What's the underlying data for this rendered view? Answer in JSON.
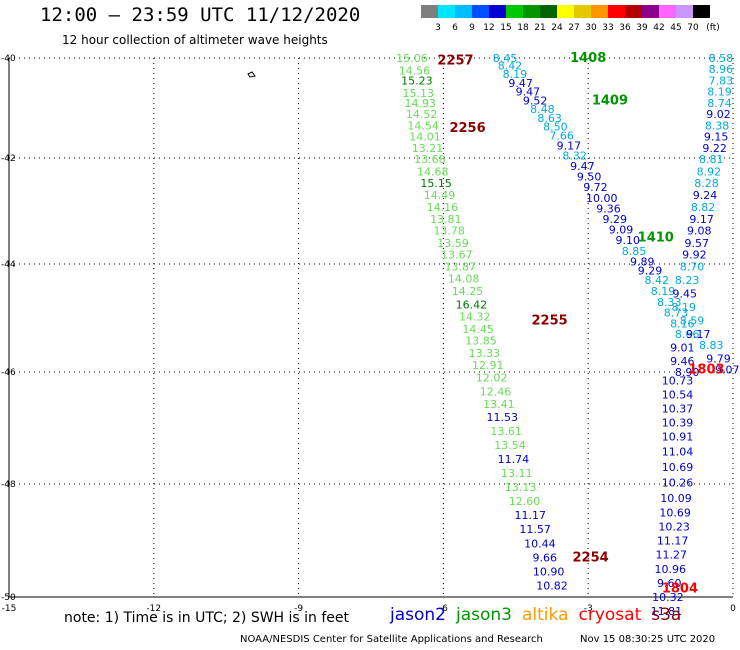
{
  "header": {
    "title": "12:00 — 23:59 UTC 11/12/2020",
    "subtitle": "12 hour collection of altimeter wave heights"
  },
  "colorbar": {
    "unit": "(ft)",
    "levels": [
      "3",
      "6",
      "9",
      "12",
      "15",
      "18",
      "21",
      "24",
      "27",
      "30",
      "33",
      "36",
      "39",
      "42",
      "45",
      "70"
    ],
    "colors": [
      "#7f7f7f",
      "#00e5ff",
      "#00bfff",
      "#0050ff",
      "#0000d0",
      "#00c800",
      "#009600",
      "#006400",
      "#ffff00",
      "#e6c800",
      "#ff9600",
      "#ff0000",
      "#b40000",
      "#8c008c",
      "#ff64ff",
      "#c896ff",
      "#000000"
    ]
  },
  "note": "note: 1) Time is in UTC; 2) SWH is in feet",
  "legend": [
    {
      "label": "jason2",
      "color": "#0000cc"
    },
    {
      "label": "jason3",
      "color": "#009600"
    },
    {
      "label": "altika",
      "color": "#ff9900"
    },
    {
      "label": "cryosat",
      "color": "#ff0000"
    },
    {
      "label": "s3a",
      "color": "#8b0000"
    }
  ],
  "footer": {
    "credit": "NOAA/NESDIS Center for Satellite Applications and Research",
    "timestamp": "Nov 15 08:30:25 UTC 2020"
  },
  "chart_data": {
    "type": "scatter",
    "title": "12:00 — 23:59 UTC 11/12/2020",
    "subtitle": "12 hour collection of altimeter wave heights",
    "xlim": [
      -15,
      0
    ],
    "ylim": [
      -50,
      -40
    ],
    "x_ticks": [
      "-15",
      "-12",
      "-9",
      "-6",
      "-3",
      "0"
    ],
    "y_ticks": [
      "-40",
      "-42",
      "-44",
      "-46",
      "-48",
      "-50"
    ],
    "grid": true,
    "colors": {
      "light_green": "#66dd55",
      "green": "#009600",
      "dark_green": "#007800",
      "cyan": "#00aadd",
      "blue": "#0000cc",
      "dark_red": "#8b0000",
      "red": "#ff0000"
    },
    "time_labels": [
      {
        "text": "2257",
        "x": -5.75,
        "y": -40.05,
        "color": "dark_red"
      },
      {
        "text": "2256",
        "x": -5.5,
        "y": -41.4,
        "color": "dark_red"
      },
      {
        "text": "2255",
        "x": -3.8,
        "y": -45.05,
        "color": "dark_red"
      },
      {
        "text": "2254",
        "x": -2.95,
        "y": -49.3,
        "color": "dark_red"
      },
      {
        "text": "1408",
        "x": -3.0,
        "y": -40.0,
        "color": "green"
      },
      {
        "text": "1409",
        "x": -2.55,
        "y": -40.85,
        "color": "green"
      },
      {
        "text": "1410",
        "x": -1.6,
        "y": -43.5,
        "color": "green"
      },
      {
        "text": "1803",
        "x": -0.55,
        "y": -45.95,
        "color": "red"
      },
      {
        "text": "1804",
        "x": -1.1,
        "y": -49.85,
        "color": "red"
      }
    ],
    "series": [
      {
        "name": "jason3 track 1",
        "color": "light_green",
        "points": [
          {
            "x": -6.65,
            "y": -40.0,
            "v": "15.06"
          },
          {
            "x": -6.6,
            "y": -40.25,
            "v": "14.56"
          },
          {
            "x": -6.55,
            "y": -40.45,
            "v": "15.23",
            "c": "dark_green"
          },
          {
            "x": -6.52,
            "y": -40.7,
            "v": "15.13"
          },
          {
            "x": -6.48,
            "y": -40.9,
            "v": "14.93"
          },
          {
            "x": -6.45,
            "y": -41.12,
            "v": "14.52"
          },
          {
            "x": -6.42,
            "y": -41.35,
            "v": "14.54"
          },
          {
            "x": -6.38,
            "y": -41.57,
            "v": "14.01"
          },
          {
            "x": -6.33,
            "y": -41.8,
            "v": "13.21"
          },
          {
            "x": -6.28,
            "y": -42.02,
            "v": "13.68"
          },
          {
            "x": -6.22,
            "y": -42.25,
            "v": "14.68"
          },
          {
            "x": -6.15,
            "y": -42.47,
            "v": "15.15",
            "c": "dark_green"
          },
          {
            "x": -6.08,
            "y": -42.7,
            "v": "14.49"
          },
          {
            "x": -6.02,
            "y": -42.92,
            "v": "14.16"
          },
          {
            "x": -5.95,
            "y": -43.15,
            "v": "13.81"
          },
          {
            "x": -5.88,
            "y": -43.37,
            "v": "13.78"
          },
          {
            "x": -5.8,
            "y": -43.6,
            "v": "13.59"
          },
          {
            "x": -5.72,
            "y": -43.82,
            "v": "13.67"
          },
          {
            "x": -5.65,
            "y": -44.05,
            "v": "13.87"
          },
          {
            "x": -5.58,
            "y": -44.27,
            "v": "14.08"
          },
          {
            "x": -5.5,
            "y": -44.5,
            "v": "14.25"
          },
          {
            "x": -5.42,
            "y": -44.75,
            "v": "16.42",
            "c": "dark_green"
          },
          {
            "x": -5.35,
            "y": -44.97,
            "v": "14.32"
          },
          {
            "x": -5.28,
            "y": -45.2,
            "v": "14.45"
          },
          {
            "x": -5.22,
            "y": -45.42,
            "v": "13.85"
          },
          {
            "x": -5.15,
            "y": -45.65,
            "v": "13.33"
          },
          {
            "x": -5.08,
            "y": -45.87,
            "v": "12.91"
          },
          {
            "x": -5.0,
            "y": -46.1,
            "v": "12.02"
          },
          {
            "x": -4.92,
            "y": -46.35,
            "v": "12.46"
          },
          {
            "x": -4.85,
            "y": -46.57,
            "v": "13.41"
          },
          {
            "x": -4.78,
            "y": -46.8,
            "v": "11.53",
            "c": "blue"
          },
          {
            "x": -4.7,
            "y": -47.05,
            "v": "13.61"
          },
          {
            "x": -4.62,
            "y": -47.3,
            "v": "13.54"
          },
          {
            "x": -4.55,
            "y": -47.55,
            "v": "11.74",
            "c": "blue"
          },
          {
            "x": -4.48,
            "y": -47.8,
            "v": "13.11"
          },
          {
            "x": -4.4,
            "y": -48.05,
            "v": "13.13"
          },
          {
            "x": -4.32,
            "y": -48.3,
            "v": "12.60"
          },
          {
            "x": -4.2,
            "y": -48.55,
            "v": "11.17",
            "c": "blue"
          },
          {
            "x": -4.1,
            "y": -48.8,
            "v": "11.57",
            "c": "blue"
          },
          {
            "x": -4.0,
            "y": -49.05,
            "v": "10.44",
            "c": "blue"
          },
          {
            "x": -3.9,
            "y": -49.3,
            "v": "9.66",
            "c": "blue"
          },
          {
            "x": -3.82,
            "y": -49.55,
            "v": "10.90",
            "c": "blue"
          },
          {
            "x": -3.75,
            "y": -49.8,
            "v": "10.82",
            "c": "blue"
          }
        ]
      },
      {
        "name": "jason2 track 1",
        "color": "cyan",
        "points": [
          {
            "x": -4.72,
            "y": -40.0,
            "v": "8.45"
          },
          {
            "x": -4.62,
            "y": -40.15,
            "v": "8.42"
          },
          {
            "x": -4.52,
            "y": -40.32,
            "v": "8.19"
          },
          {
            "x": -4.4,
            "y": -40.5,
            "v": "9.47",
            "c": "blue"
          },
          {
            "x": -4.25,
            "y": -40.67,
            "v": "9.47",
            "c": "blue"
          },
          {
            "x": -4.1,
            "y": -40.85,
            "v": "9.52",
            "c": "blue"
          },
          {
            "x": -3.95,
            "y": -41.02,
            "v": "8.48"
          },
          {
            "x": -3.8,
            "y": -41.2,
            "v": "8.63"
          },
          {
            "x": -3.68,
            "y": -41.37,
            "v": "8.50"
          },
          {
            "x": -3.55,
            "y": -41.55,
            "v": "7.66"
          },
          {
            "x": -3.4,
            "y": -41.75,
            "v": "9.17",
            "c": "blue"
          },
          {
            "x": -3.28,
            "y": -41.95,
            "v": "8.32"
          },
          {
            "x": -3.12,
            "y": -42.15,
            "v": "9.47",
            "c": "blue"
          },
          {
            "x": -2.98,
            "y": -42.35,
            "v": "9.50",
            "c": "blue"
          },
          {
            "x": -2.85,
            "y": -42.55,
            "v": "9.72",
            "c": "blue"
          },
          {
            "x": -2.72,
            "y": -42.75,
            "v": "10.00",
            "c": "blue"
          },
          {
            "x": -2.58,
            "y": -42.95,
            "v": "9.36",
            "c": "blue"
          },
          {
            "x": -2.45,
            "y": -43.15,
            "v": "9.29",
            "c": "blue"
          },
          {
            "x": -2.32,
            "y": -43.35,
            "v": "9.09",
            "c": "blue"
          },
          {
            "x": -2.18,
            "y": -43.55,
            "v": "9.10",
            "c": "blue"
          },
          {
            "x": -2.05,
            "y": -43.75,
            "v": "8.85"
          },
          {
            "x": -1.88,
            "y": -43.95,
            "v": "9.89",
            "c": "blue"
          },
          {
            "x": -1.72,
            "y": -44.12,
            "v": "9.29",
            "c": "blue"
          },
          {
            "x": -1.58,
            "y": -44.3,
            "v": "8.42"
          },
          {
            "x": -1.45,
            "y": -44.5,
            "v": "8.19"
          },
          {
            "x": -1.32,
            "y": -44.7,
            "v": "8.33"
          },
          {
            "x": -1.18,
            "y": -44.9,
            "v": "8.73"
          },
          {
            "x": -1.05,
            "y": -45.1,
            "v": "8.16"
          },
          {
            "x": -0.95,
            "y": -45.3,
            "v": "8.66"
          }
        ]
      },
      {
        "name": "jason2 track 2",
        "color": "cyan",
        "points": [
          {
            "x": -0.25,
            "y": -40.0,
            "v": "8.58"
          },
          {
            "x": -0.25,
            "y": -40.22,
            "v": "8.96"
          },
          {
            "x": -0.25,
            "y": -40.45,
            "v": "7.83"
          },
          {
            "x": -0.28,
            "y": -40.67,
            "v": "8.19"
          },
          {
            "x": -0.28,
            "y": -40.9,
            "v": "8.74"
          },
          {
            "x": -0.3,
            "y": -41.12,
            "v": "9.02",
            "c": "blue"
          },
          {
            "x": -0.33,
            "y": -41.35,
            "v": "8.38"
          },
          {
            "x": -0.35,
            "y": -41.57,
            "v": "9.15",
            "c": "blue"
          },
          {
            "x": -0.38,
            "y": -41.8,
            "v": "9.22",
            "c": "blue"
          },
          {
            "x": -0.45,
            "y": -42.02,
            "v": "8.81"
          },
          {
            "x": -0.5,
            "y": -42.25,
            "v": "8.92"
          },
          {
            "x": -0.55,
            "y": -42.47,
            "v": "8.28"
          },
          {
            "x": -0.58,
            "y": -42.7,
            "v": "9.24",
            "c": "blue"
          },
          {
            "x": -0.62,
            "y": -42.92,
            "v": "8.82"
          },
          {
            "x": -0.65,
            "y": -43.15,
            "v": "9.17",
            "c": "blue"
          },
          {
            "x": -0.7,
            "y": -43.37,
            "v": "9.08",
            "c": "blue"
          },
          {
            "x": -0.75,
            "y": -43.6,
            "v": "9.57",
            "c": "blue"
          },
          {
            "x": -0.8,
            "y": -43.82,
            "v": "9.92",
            "c": "blue"
          },
          {
            "x": -0.85,
            "y": -44.05,
            "v": "8.70"
          },
          {
            "x": -0.95,
            "y": -44.3,
            "v": "8.23"
          },
          {
            "x": -1.0,
            "y": -44.55,
            "v": "9.45",
            "c": "blue"
          },
          {
            "x": -1.02,
            "y": -44.8,
            "v": "8.19"
          },
          {
            "x": -0.85,
            "y": -45.05,
            "v": "8.59"
          },
          {
            "x": -0.72,
            "y": -45.3,
            "v": "9.17",
            "c": "blue"
          },
          {
            "x": -0.45,
            "y": -45.5,
            "v": "8.83"
          },
          {
            "x": -0.3,
            "y": -45.75,
            "v": "9.79",
            "c": "blue"
          },
          {
            "x": -0.12,
            "y": -45.95,
            "v": "9.07",
            "c": "blue"
          }
        ]
      },
      {
        "name": "jason2 track 3",
        "color": "blue",
        "points": [
          {
            "x": -1.05,
            "y": -45.55,
            "v": "9.01"
          },
          {
            "x": -1.05,
            "y": -45.8,
            "v": "9.46"
          },
          {
            "x": -0.95,
            "y": -46.0,
            "v": "8.90"
          },
          {
            "x": -1.15,
            "y": -46.15,
            "v": "10.73"
          },
          {
            "x": -1.15,
            "y": -46.4,
            "v": "10.54"
          },
          {
            "x": -1.15,
            "y": -46.65,
            "v": "10.37"
          },
          {
            "x": -1.15,
            "y": -46.9,
            "v": "10.39"
          },
          {
            "x": -1.15,
            "y": -47.15,
            "v": "10.91"
          },
          {
            "x": -1.15,
            "y": -47.42,
            "v": "11.04"
          },
          {
            "x": -1.15,
            "y": -47.7,
            "v": "10.69"
          },
          {
            "x": -1.15,
            "y": -47.97,
            "v": "10.26"
          },
          {
            "x": -1.18,
            "y": -48.25,
            "v": "10.09"
          },
          {
            "x": -1.2,
            "y": -48.5,
            "v": "10.69"
          },
          {
            "x": -1.22,
            "y": -48.75,
            "v": "10.23"
          },
          {
            "x": -1.25,
            "y": -49.0,
            "v": "11.17"
          },
          {
            "x": -1.28,
            "y": -49.25,
            "v": "11.27"
          },
          {
            "x": -1.3,
            "y": -49.5,
            "v": "10.96"
          },
          {
            "x": -1.32,
            "y": -49.75,
            "v": "9.60"
          },
          {
            "x": -1.35,
            "y": -50.0,
            "v": "10.32"
          },
          {
            "x": -1.38,
            "y": -50.25,
            "v": "11.81"
          }
        ]
      }
    ]
  }
}
